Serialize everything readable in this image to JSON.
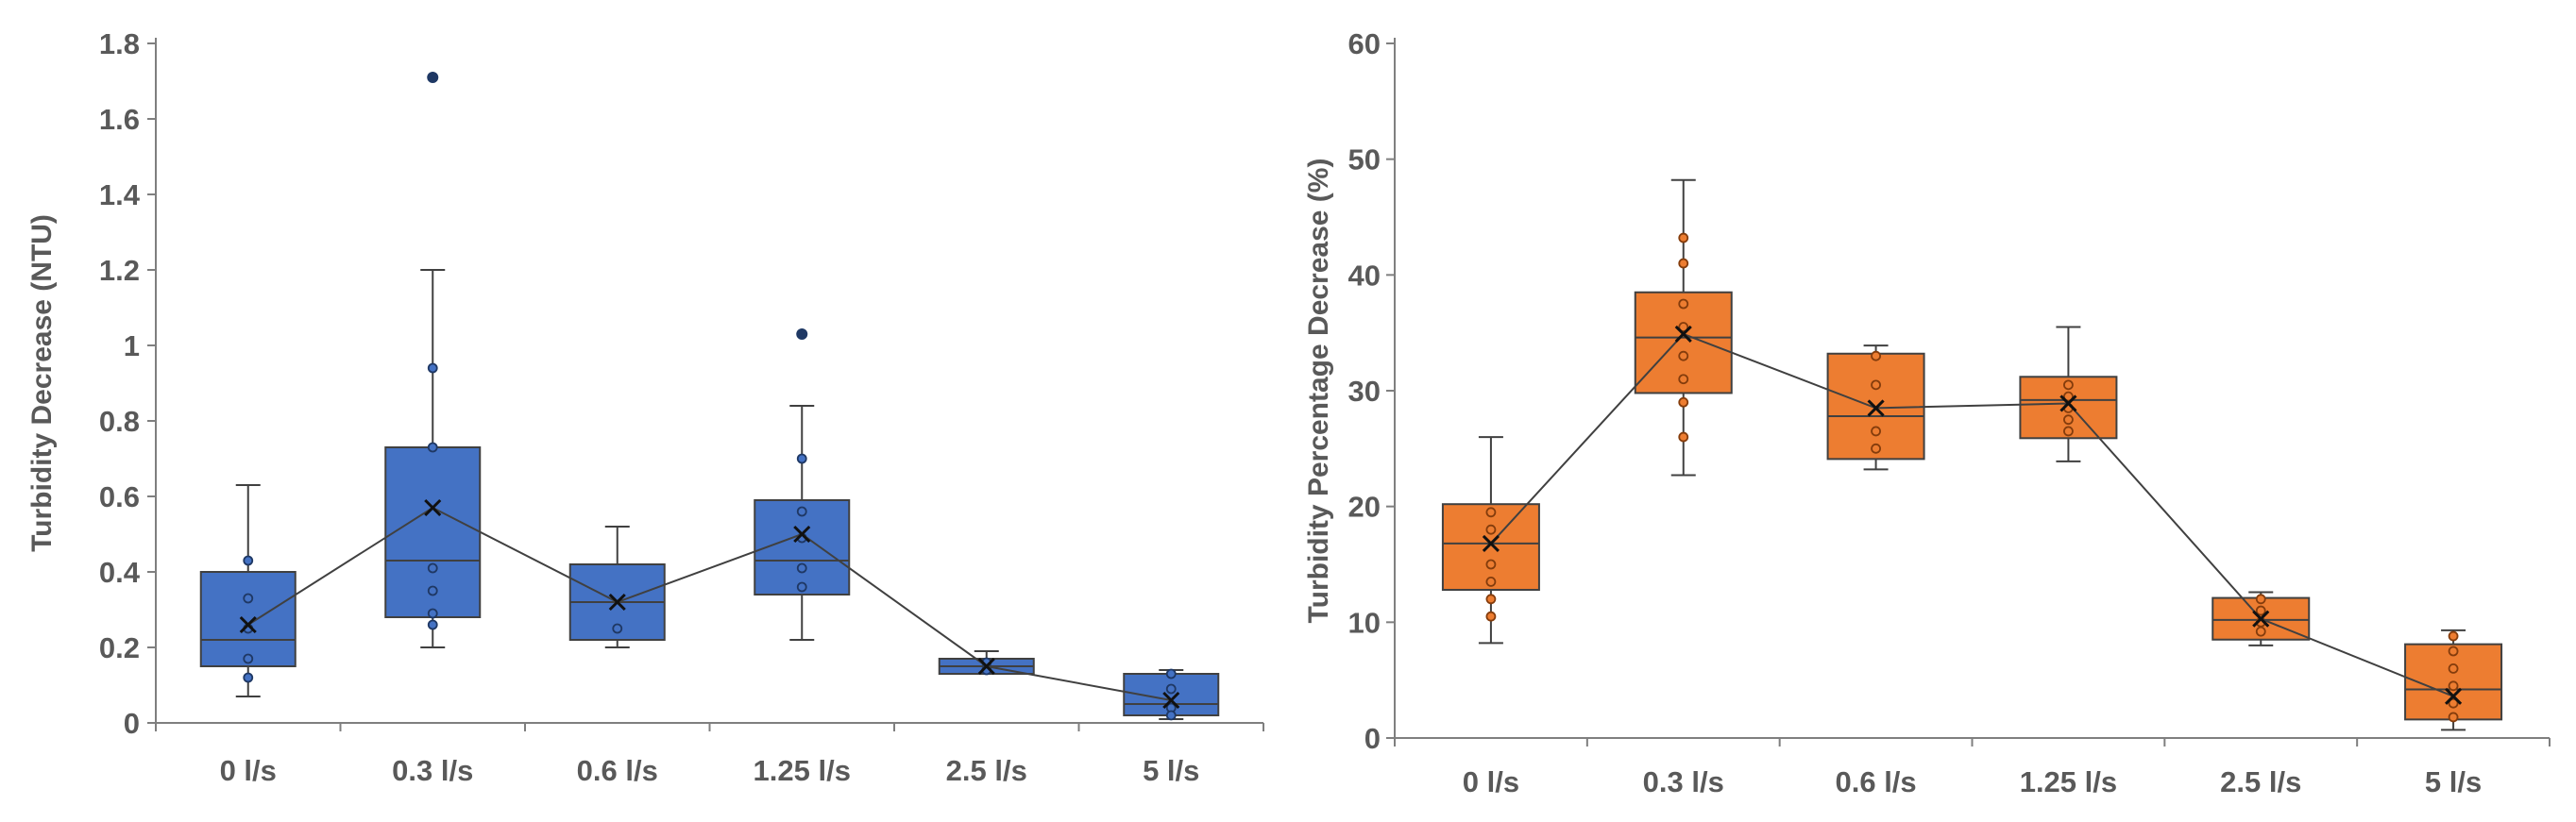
{
  "chart_data": [
    {
      "type": "boxplot",
      "ylabel": "Turbidity Decrease (NTU)",
      "categories": [
        "0 l/s",
        "0.3 l/s",
        "0.6 l/s",
        "1.25 l/s",
        "2.5 l/s",
        "5 l/s"
      ],
      "ylim": [
        0,
        1.8
      ],
      "yticks": [
        0,
        0.2,
        0.4,
        0.6,
        0.8,
        1,
        1.2,
        1.4,
        1.6,
        1.8
      ],
      "ytick_labels": [
        "0",
        "0.2",
        "0.4",
        "0.6",
        "0.8",
        "1",
        "1.2",
        "1.4",
        "1.6",
        "1.8"
      ],
      "color": "#4472c4",
      "point_color": "#1f3864",
      "boxes": [
        {
          "label": "0 l/s",
          "whisker_low": 0.07,
          "q1": 0.15,
          "median": 0.22,
          "q3": 0.4,
          "whisker_high": 0.63,
          "mean": 0.26,
          "points": [
            0.43,
            0.33,
            0.25,
            0.17,
            0.12
          ],
          "outliers": []
        },
        {
          "label": "0.3 l/s",
          "whisker_low": 0.2,
          "q1": 0.28,
          "median": 0.43,
          "q3": 0.73,
          "whisker_high": 1.2,
          "mean": 0.57,
          "points": [
            0.94,
            0.73,
            0.41,
            0.35,
            0.29,
            0.26
          ],
          "outliers": [
            1.71
          ]
        },
        {
          "label": "0.6 l/s",
          "whisker_low": 0.2,
          "q1": 0.22,
          "median": 0.32,
          "q3": 0.42,
          "whisker_high": 0.52,
          "mean": 0.32,
          "points": [
            0.25
          ],
          "outliers": []
        },
        {
          "label": "1.25 l/s",
          "whisker_low": 0.22,
          "q1": 0.34,
          "median": 0.43,
          "q3": 0.59,
          "whisker_high": 0.84,
          "mean": 0.5,
          "points": [
            0.7,
            0.56,
            0.49,
            0.41,
            0.36
          ],
          "outliers": [
            1.03
          ]
        },
        {
          "label": "2.5 l/s",
          "whisker_low": 0.13,
          "q1": 0.13,
          "median": 0.15,
          "q3": 0.17,
          "whisker_high": 0.19,
          "mean": 0.15,
          "points": [
            0.16,
            0.14
          ],
          "outliers": []
        },
        {
          "label": "5 l/s",
          "whisker_low": 0.01,
          "q1": 0.02,
          "median": 0.05,
          "q3": 0.13,
          "whisker_high": 0.14,
          "mean": 0.06,
          "points": [
            0.13,
            0.09,
            0.04,
            0.02
          ],
          "outliers": []
        }
      ]
    },
    {
      "type": "boxplot",
      "ylabel": "Turbidity Percentage  Decrease (%)",
      "categories": [
        "0 l/s",
        "0.3 l/s",
        "0.6 l/s",
        "1.25 l/s",
        "2.5 l/s",
        "5 l/s"
      ],
      "ylim": [
        0,
        60
      ],
      "yticks": [
        0,
        10,
        20,
        30,
        40,
        50,
        60
      ],
      "ytick_labels": [
        "0",
        "10",
        "20",
        "30",
        "40",
        "50",
        "60"
      ],
      "color": "#ed7d31",
      "point_color": "#843c0c",
      "boxes": [
        {
          "label": "0 l/s",
          "whisker_low": 8.2,
          "q1": 12.8,
          "median": 16.8,
          "q3": 20.2,
          "whisker_high": 26.0,
          "mean": 16.8,
          "points": [
            19.5,
            18.0,
            15.0,
            13.5,
            12.0,
            10.5
          ],
          "outliers": []
        },
        {
          "label": "0.3 l/s",
          "whisker_low": 22.7,
          "q1": 29.8,
          "median": 34.6,
          "q3": 38.5,
          "whisker_high": 48.2,
          "mean": 34.9,
          "points": [
            43.2,
            41.0,
            37.5,
            35.5,
            33.0,
            31.0,
            29.0,
            26.0
          ],
          "outliers": []
        },
        {
          "label": "0.6 l/s",
          "whisker_low": 23.2,
          "q1": 24.1,
          "median": 27.8,
          "q3": 33.2,
          "whisker_high": 33.9,
          "mean": 28.5,
          "points": [
            33.0,
            30.5,
            26.5,
            25.0
          ],
          "outliers": []
        },
        {
          "label": "1.25 l/s",
          "whisker_low": 23.9,
          "q1": 25.9,
          "median": 29.2,
          "q3": 31.2,
          "whisker_high": 35.5,
          "mean": 28.9,
          "points": [
            30.5,
            29.5,
            28.5,
            27.5,
            26.5
          ],
          "outliers": []
        },
        {
          "label": "2.5 l/s",
          "whisker_low": 8.0,
          "q1": 8.5,
          "median": 10.2,
          "q3": 12.1,
          "whisker_high": 12.6,
          "mean": 10.3,
          "points": [
            12.0,
            11.0,
            10.0,
            9.2
          ],
          "outliers": []
        },
        {
          "label": "5 l/s",
          "whisker_low": 0.7,
          "q1": 1.6,
          "median": 4.2,
          "q3": 8.1,
          "whisker_high": 9.3,
          "mean": 3.6,
          "points": [
            8.8,
            7.5,
            6.0,
            4.5,
            3.0,
            1.8
          ],
          "outliers": []
        }
      ]
    }
  ]
}
